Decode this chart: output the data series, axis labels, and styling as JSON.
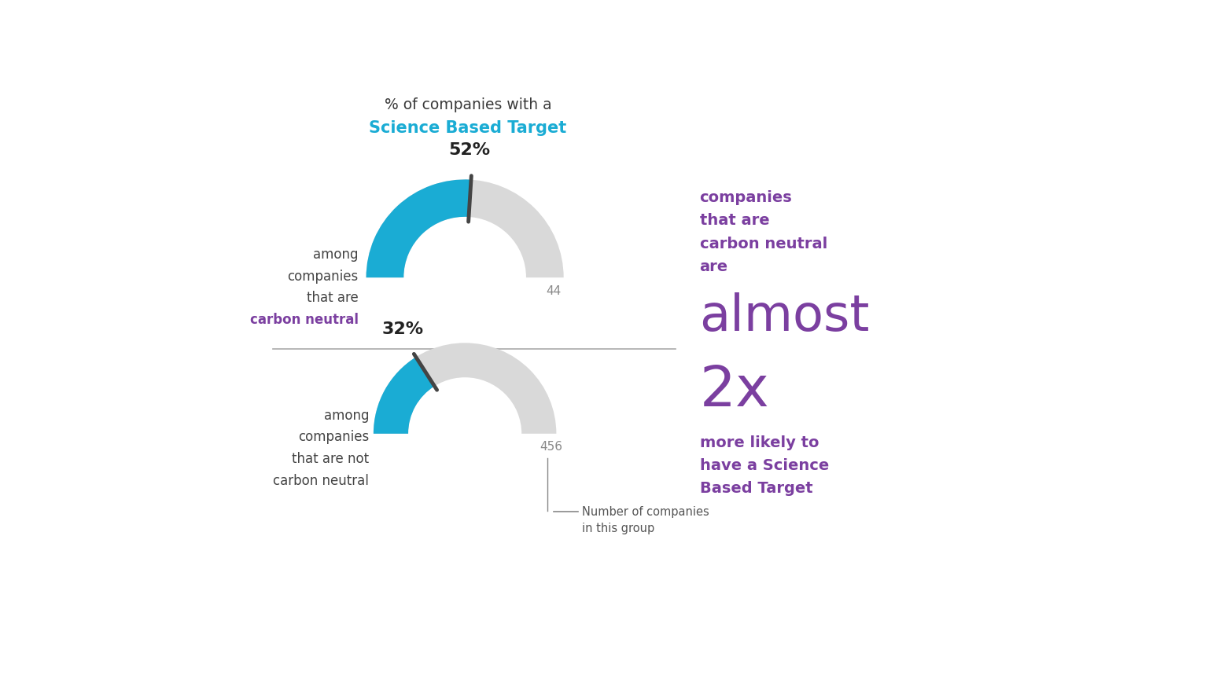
{
  "title_line1": "% of companies with a",
  "title_line2": "Science Based Target",
  "title_color1": "#3a3a3a",
  "title_color2": "#1aacd4",
  "gauge1_pct": 52,
  "gauge1_n": 44,
  "gauge1_label_lines": [
    "among",
    "companies",
    "that are",
    "carbon neutral"
  ],
  "gauge1_label_highlight": "carbon neutral",
  "gauge1_highlight_color": "#7b3fa0",
  "gauge2_pct": 32,
  "gauge2_n": 456,
  "gauge2_label_lines": [
    "among",
    "companies",
    "that are not",
    "carbon neutral"
  ],
  "gauge_fill_color": "#1aacd4",
  "gauge_bg_color": "#d9d9d9",
  "needle_color": "#444444",
  "right_text_lines": [
    "companies",
    "that are",
    "carbon neutral",
    "are"
  ],
  "right_big1": "almost",
  "right_big2": "2x",
  "right_text_lines2": [
    "more likely to",
    "have a Science",
    "Based Target"
  ],
  "right_text_color": "#7b3fa0",
  "n_label_color": "#888888",
  "n_legend_text": [
    "Number of companies",
    "in this group"
  ],
  "separator_color": "#aaaaaa",
  "background_color": "#ffffff",
  "fig_width": 15.36,
  "fig_height": 8.64
}
